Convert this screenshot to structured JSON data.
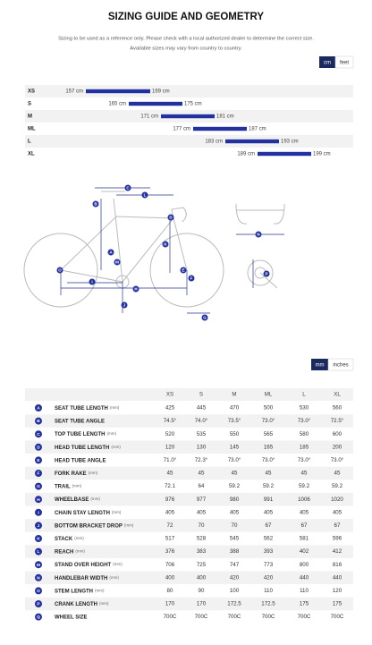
{
  "header": {
    "title": "SIZING GUIDE AND GEOMETRY",
    "subtitle": [
      "Sizing to be used as a reference only. Please check with a local authorized dealer to determine the correct size.",
      "Available sizes may vary from country to country."
    ]
  },
  "unit_toggle": [
    "cm",
    "feet"
  ],
  "size_chart": {
    "rows": [
      {
        "size": "XS",
        "min": 157,
        "max": 169,
        "min_label": "157 cm",
        "max_label": "169 cm"
      },
      {
        "size": "S",
        "min": 165,
        "max": 175,
        "min_label": "165 cm",
        "max_label": "175 cm"
      },
      {
        "size": "M",
        "min": 171,
        "max": 181,
        "min_label": "171 cm",
        "max_label": "181 cm"
      },
      {
        "size": "ML",
        "min": 177,
        "max": 187,
        "min_label": "177 cm",
        "max_label": "187 cm"
      },
      {
        "size": "L",
        "min": 183,
        "max": 193,
        "min_label": "183 cm",
        "max_label": "193 cm"
      },
      {
        "size": "XL",
        "min": 189,
        "max": 199,
        "min_label": "189 cm",
        "max_label": "199 cm"
      }
    ]
  },
  "diagram": {
    "markers": [
      "C",
      "L",
      "B",
      "D",
      "K",
      "A",
      "M",
      "O",
      "I",
      "H",
      "J",
      "E",
      "F",
      "G",
      "N",
      "P"
    ]
  },
  "geometry_toggle": [
    "mm",
    "inches"
  ],
  "geometry": {
    "sizes": [
      "XS",
      "S",
      "M",
      "ML",
      "L",
      "XL"
    ],
    "rows": [
      {
        "key": "A",
        "label": "SEAT TUBE LENGTH",
        "unit": "(mm)",
        "values": [
          "425",
          "445",
          "470",
          "500",
          "530",
          "560"
        ]
      },
      {
        "key": "B",
        "label": "SEAT TUBE ANGLE",
        "values": [
          "74.5°",
          "74.0°",
          "73.5°",
          "73.0°",
          "73.0°",
          "72.5°"
        ]
      },
      {
        "key": "C",
        "label": "TOP TUBE LENGTH",
        "unit": "(mm)",
        "values": [
          "520",
          "535",
          "550",
          "565",
          "580",
          "600"
        ]
      },
      {
        "key": "D",
        "label": "HEAD TUBE LENGTH",
        "unit": "(mm)",
        "values": [
          "120",
          "130",
          "145",
          "165",
          "185",
          "200"
        ]
      },
      {
        "key": "E",
        "label": "HEAD TUBE ANGLE",
        "values": [
          "71.0°",
          "72.3°",
          "73.0°",
          "73.0°",
          "73.0°",
          "73.0°"
        ]
      },
      {
        "key": "F",
        "label": "FORK RAKE",
        "unit": "(mm)",
        "values": [
          "45",
          "45",
          "45",
          "45",
          "45",
          "45"
        ]
      },
      {
        "key": "G",
        "label": "TRAIL",
        "unit": "(mm)",
        "values": [
          "72.1",
          "64",
          "59.2",
          "59.2",
          "59.2",
          "59.2"
        ]
      },
      {
        "key": "H",
        "label": "WHEELBASE",
        "unit": "(mm)",
        "values": [
          "976",
          "977",
          "980",
          "991",
          "1006",
          "1020"
        ]
      },
      {
        "key": "I",
        "label": "CHAIN STAY LENGTH",
        "unit": "(mm)",
        "values": [
          "405",
          "405",
          "405",
          "405",
          "405",
          "405"
        ]
      },
      {
        "key": "J",
        "label": "BOTTOM BRACKET DROP",
        "unit": "(mm)",
        "values": [
          "72",
          "70",
          "70",
          "67",
          "67",
          "67"
        ]
      },
      {
        "key": "K",
        "label": "STACK",
        "unit": "(mm)",
        "values": [
          "517",
          "528",
          "545",
          "562",
          "581",
          "596"
        ]
      },
      {
        "key": "L",
        "label": "REACH",
        "unit": "(mm)",
        "values": [
          "376",
          "383",
          "388",
          "393",
          "402",
          "412"
        ]
      },
      {
        "key": "M",
        "label": "STAND OVER HEIGHT",
        "unit": "(mm)",
        "values": [
          "706",
          "725",
          "747",
          "773",
          "800",
          "816"
        ]
      },
      {
        "key": "N",
        "label": "HANDLEBAR WIDTH",
        "unit": "(mm)",
        "values": [
          "400",
          "400",
          "420",
          "420",
          "440",
          "440"
        ]
      },
      {
        "key": "O",
        "label": "STEM LENGTH",
        "unit": "(mm)",
        "values": [
          "80",
          "90",
          "100",
          "110",
          "110",
          "120"
        ]
      },
      {
        "key": "P",
        "label": "CRANK LENGTH",
        "unit": "(mm)",
        "values": [
          "170",
          "170",
          "172.5",
          "172.5",
          "175",
          "175"
        ]
      },
      {
        "key": "Q",
        "label": "WHEEL SIZE",
        "values": [
          "700C",
          "700C",
          "700C",
          "700C",
          "700C",
          "700C"
        ]
      }
    ]
  }
}
